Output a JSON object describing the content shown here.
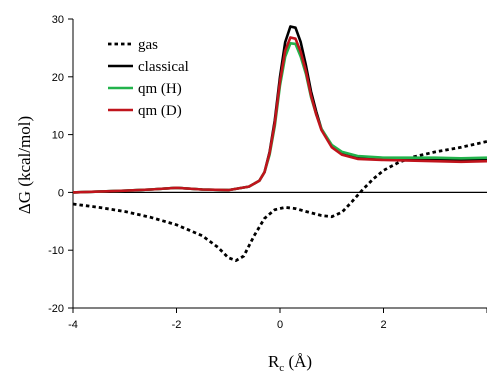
{
  "chart_data": {
    "type": "line",
    "title": "",
    "xlabel": "R",
    "xlabel_sub": "c",
    "xlabel_unit": " (Å)",
    "ylabel": "ΔG (kcal/mol)",
    "xlim": [
      -4,
      4
    ],
    "ylim": [
      -20,
      30
    ],
    "x_ticks": [
      -4,
      -2,
      0,
      2,
      4
    ],
    "y_ticks": [
      -20,
      -10,
      0,
      10,
      20,
      30
    ],
    "x_tick_labels": [
      "-4",
      "-2",
      "0",
      "2"
    ],
    "y_tick_labels": [
      "-20",
      "-10",
      "0",
      "10",
      "20",
      "30"
    ],
    "grid": false,
    "zero_line": true,
    "legend_position": "top-left",
    "series": [
      {
        "name": "gas",
        "color": "#000000",
        "style": "dotted",
        "points": [
          [
            -4.0,
            -2.0
          ],
          [
            -3.5,
            -2.6
          ],
          [
            -3.0,
            -3.3
          ],
          [
            -2.5,
            -4.3
          ],
          [
            -2.0,
            -5.6
          ],
          [
            -1.5,
            -7.5
          ],
          [
            -1.2,
            -9.5
          ],
          [
            -1.0,
            -11.3
          ],
          [
            -0.85,
            -11.8
          ],
          [
            -0.7,
            -11.0
          ],
          [
            -0.5,
            -7.5
          ],
          [
            -0.3,
            -4.5
          ],
          [
            -0.1,
            -3.0
          ],
          [
            0.1,
            -2.6
          ],
          [
            0.3,
            -2.8
          ],
          [
            0.5,
            -3.3
          ],
          [
            0.8,
            -4.0
          ],
          [
            1.0,
            -4.2
          ],
          [
            1.2,
            -3.4
          ],
          [
            1.4,
            -1.5
          ],
          [
            1.6,
            0.5
          ],
          [
            1.8,
            2.3
          ],
          [
            2.0,
            3.8
          ],
          [
            2.3,
            5.2
          ],
          [
            2.6,
            6.2
          ],
          [
            3.0,
            7.0
          ],
          [
            3.5,
            7.8
          ],
          [
            4.0,
            8.8
          ]
        ]
      },
      {
        "name": "classical",
        "color": "#000000",
        "style": "solid",
        "points": [
          [
            -4.0,
            0.0
          ],
          [
            -3.0,
            0.3
          ],
          [
            -2.5,
            0.5
          ],
          [
            -2.0,
            0.8
          ],
          [
            -1.5,
            0.5
          ],
          [
            -1.0,
            0.4
          ],
          [
            -0.6,
            1.0
          ],
          [
            -0.4,
            2.0
          ],
          [
            -0.3,
            3.5
          ],
          [
            -0.2,
            7.0
          ],
          [
            -0.1,
            12.5
          ],
          [
            0.0,
            20.0
          ],
          [
            0.1,
            26.0
          ],
          [
            0.2,
            28.7
          ],
          [
            0.3,
            28.5
          ],
          [
            0.4,
            26.0
          ],
          [
            0.5,
            22.0
          ],
          [
            0.6,
            17.5
          ],
          [
            0.7,
            14.0
          ],
          [
            0.8,
            11.0
          ],
          [
            1.0,
            8.0
          ],
          [
            1.2,
            6.8
          ],
          [
            1.5,
            6.0
          ],
          [
            2.0,
            5.8
          ],
          [
            2.5,
            5.8
          ],
          [
            3.0,
            5.6
          ],
          [
            3.5,
            5.5
          ],
          [
            4.0,
            5.8
          ]
        ]
      },
      {
        "name": "qm (H)",
        "color": "#22b34c",
        "style": "solid",
        "points": [
          [
            -4.0,
            0.0
          ],
          [
            -3.0,
            0.3
          ],
          [
            -2.5,
            0.5
          ],
          [
            -2.0,
            0.8
          ],
          [
            -1.5,
            0.5
          ],
          [
            -1.0,
            0.4
          ],
          [
            -0.6,
            1.0
          ],
          [
            -0.4,
            2.0
          ],
          [
            -0.3,
            3.5
          ],
          [
            -0.2,
            6.5
          ],
          [
            -0.1,
            11.5
          ],
          [
            0.0,
            18.5
          ],
          [
            0.1,
            23.5
          ],
          [
            0.2,
            25.8
          ],
          [
            0.3,
            25.7
          ],
          [
            0.4,
            23.5
          ],
          [
            0.5,
            20.5
          ],
          [
            0.6,
            16.5
          ],
          [
            0.7,
            13.5
          ],
          [
            0.8,
            11.0
          ],
          [
            1.0,
            8.2
          ],
          [
            1.2,
            7.0
          ],
          [
            1.5,
            6.3
          ],
          [
            2.0,
            6.0
          ],
          [
            2.5,
            6.0
          ],
          [
            3.0,
            6.0
          ],
          [
            3.5,
            5.9
          ],
          [
            4.0,
            6.0
          ]
        ]
      },
      {
        "name": "qm (D)",
        "color": "#c0141c",
        "style": "solid",
        "points": [
          [
            -4.0,
            0.0
          ],
          [
            -3.0,
            0.3
          ],
          [
            -2.5,
            0.5
          ],
          [
            -2.0,
            0.8
          ],
          [
            -1.5,
            0.5
          ],
          [
            -1.0,
            0.4
          ],
          [
            -0.6,
            1.0
          ],
          [
            -0.4,
            2.0
          ],
          [
            -0.3,
            3.5
          ],
          [
            -0.2,
            6.8
          ],
          [
            -0.1,
            12.0
          ],
          [
            0.0,
            19.2
          ],
          [
            0.1,
            24.5
          ],
          [
            0.2,
            26.8
          ],
          [
            0.3,
            26.6
          ],
          [
            0.4,
            24.3
          ],
          [
            0.5,
            21.0
          ],
          [
            0.6,
            16.8
          ],
          [
            0.7,
            13.5
          ],
          [
            0.8,
            10.8
          ],
          [
            1.0,
            7.8
          ],
          [
            1.2,
            6.5
          ],
          [
            1.5,
            5.8
          ],
          [
            2.0,
            5.6
          ],
          [
            2.5,
            5.5
          ],
          [
            3.0,
            5.4
          ],
          [
            3.5,
            5.3
          ],
          [
            4.0,
            5.4
          ]
        ]
      }
    ]
  }
}
